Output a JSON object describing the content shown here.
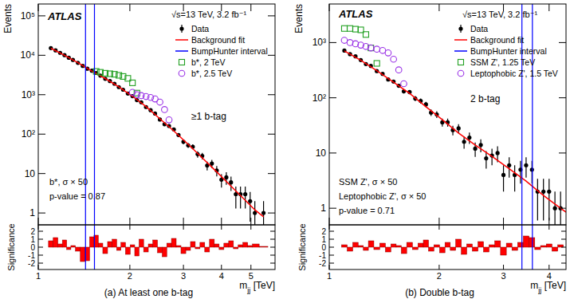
{
  "chart_data": [
    {
      "type": "scatter",
      "caption": "(a) At least one b-tag",
      "log": true,
      "xlim": [
        1.0,
        6.0
      ],
      "xticks": [
        1,
        2,
        3,
        4,
        5
      ],
      "ylim": [
        0.5,
        200000
      ],
      "yticks": [
        1,
        10,
        {
          "value": 100,
          "label": "10²"
        },
        {
          "value": 1000,
          "label": "10³"
        },
        {
          "value": 10000,
          "label": "10⁴"
        },
        {
          "value": 100000,
          "label": "10⁵"
        }
      ],
      "y_label": "Events",
      "x_label": [
        "m",
        "jj",
        " [TeV]"
      ],
      "annotations": {
        "experiment": "ATLAS",
        "energy": "√s=13 TeV, 3.2 fb⁻¹",
        "category": "≥1 b-tag",
        "notes": [
          "b*, σ × 50",
          "p-value = 0.87"
        ]
      },
      "series": [
        {
          "name": "Data",
          "type": "scatter",
          "marker": "circle",
          "color": "#000000",
          "x": [
            1.1,
            1.14,
            1.18,
            1.22,
            1.26,
            1.3,
            1.35,
            1.4,
            1.45,
            1.5,
            1.55,
            1.6,
            1.66,
            1.72,
            1.78,
            1.84,
            1.9,
            1.97,
            2.04,
            2.11,
            2.18,
            2.26,
            2.34,
            2.42,
            2.51,
            2.6,
            2.69,
            2.79,
            2.89,
            3.0,
            3.11,
            3.22,
            3.34,
            3.46,
            3.59,
            3.72,
            3.86,
            4.0,
            4.15,
            4.3,
            4.46,
            4.62,
            4.79,
            4.97,
            5.15,
            5.5
          ],
          "values": [
            15200,
            13340,
            11540,
            10090,
            8670,
            7620,
            6420,
            5370,
            4560,
            4060,
            3560,
            3050,
            2530,
            2220,
            1900,
            1560,
            1340,
            1070,
            921,
            729,
            642,
            487,
            406,
            332,
            234,
            178,
            161,
            132,
            95,
            64,
            52,
            48,
            31,
            28,
            16,
            18,
            12,
            7,
            8,
            6,
            3,
            3,
            3,
            2,
            1,
            1
          ],
          "errors": [
            123,
            116,
            107,
            100,
            93,
            87,
            80,
            73,
            68,
            64,
            60,
            55,
            50,
            47,
            44,
            39,
            37,
            33,
            30,
            27,
            25,
            22,
            20,
            18,
            15,
            13,
            13,
            11,
            9.7,
            8,
            7.2,
            6.9,
            5.6,
            5.3,
            4,
            4.2,
            3.5,
            2.6,
            2.8,
            2.4,
            1.7,
            1.7,
            1.7,
            1.4,
            1,
            1
          ]
        },
        {
          "name": "Background fit",
          "type": "line",
          "color": "#ff0000",
          "x": [
            1.1,
            1.22,
            1.35,
            1.5,
            1.66,
            1.84,
            2.04,
            2.26,
            2.51,
            2.79,
            3.11,
            3.46,
            3.86,
            4.3,
            4.79,
            5.15,
            5.5
          ],
          "values": [
            15100,
            10000,
            6460,
            3980,
            2570,
            1580,
            912,
            500,
            245,
            120,
            55,
            25,
            11,
            4.8,
            2.1,
            1.2,
            0.8
          ]
        },
        {
          "name": "BumpHunter interval",
          "type": "vline",
          "color": "#0000ff",
          "x": [
            1.43,
            1.53
          ]
        },
        {
          "name": "b*, 2 TeV",
          "type": "scatter",
          "marker": "open_square",
          "color": "#22a022",
          "x": [
            1.55,
            1.6,
            1.66,
            1.72,
            1.78,
            1.84,
            1.9,
            1.97,
            2.04,
            2.11
          ],
          "values": [
            3900,
            3700,
            3500,
            3400,
            3300,
            3100,
            2900,
            2600,
            2000,
            1100
          ]
        },
        {
          "name": "b*, 2.5 TeV",
          "type": "scatter",
          "marker": "open_circle",
          "color": "#9a32e6",
          "x": [
            2.04,
            2.11,
            2.18,
            2.26,
            2.34,
            2.42,
            2.51,
            2.6,
            2.69
          ],
          "values": [
            1150,
            1000,
            950,
            900,
            850,
            780,
            650,
            420,
            230
          ]
        }
      ],
      "significance": {
        "y_label": "Significance",
        "ylim": [
          -2.8,
          2.8
        ],
        "yticks": [
          -2,
          -1,
          0,
          1,
          2
        ],
        "color": "#ff0000",
        "values": [
          0.8,
          1.2,
          0.4,
          0.9,
          -0.3,
          0.2,
          -0.5,
          -1.8,
          -1.7,
          1.3,
          1.5,
          0.5,
          -0.8,
          0.7,
          1.0,
          -0.4,
          0.6,
          -0.9,
          0.3,
          -1.1,
          1.0,
          -0.6,
          0.4,
          0.9,
          -0.7,
          -1.2,
          0.5,
          1.1,
          0.2,
          -0.8,
          -0.4,
          0.7,
          -0.2,
          0.6,
          -0.6,
          1.0,
          0.4,
          -0.3,
          0.5,
          0.8,
          -0.2,
          0.3,
          0.6,
          0.2,
          0.4,
          0.1
        ]
      }
    },
    {
      "type": "scatter",
      "caption": "(b) Double b-tag",
      "log": true,
      "xlim": [
        1.0,
        4.45
      ],
      "xticks": [
        1,
        2,
        3,
        4
      ],
      "ylim": [
        0.5,
        5000
      ],
      "yticks": [
        1,
        10,
        {
          "value": 100,
          "label": "10²"
        },
        {
          "value": 1000,
          "label": "10³"
        }
      ],
      "y_label": "Events",
      "x_label": [
        "m",
        "jj",
        " [TeV]"
      ],
      "annotations": {
        "experiment": "ATLAS",
        "energy": "√s=13 TeV, 3.2 fb⁻¹",
        "category": "2 b-tag",
        "notes": [
          "SSM Z', σ × 50",
          "Leptophobic Z', σ × 50",
          "p-value = 0.71"
        ]
      },
      "series": [
        {
          "name": "Data",
          "type": "scatter",
          "marker": "circle",
          "color": "#000000",
          "x": [
            1.1,
            1.14,
            1.18,
            1.22,
            1.26,
            1.3,
            1.35,
            1.4,
            1.45,
            1.5,
            1.55,
            1.6,
            1.66,
            1.72,
            1.78,
            1.84,
            1.9,
            1.97,
            2.04,
            2.11,
            2.18,
            2.26,
            2.34,
            2.42,
            2.51,
            2.6,
            2.69,
            2.79,
            2.89,
            3.0,
            3.11,
            3.22,
            3.34,
            3.46,
            3.59,
            3.72,
            3.86,
            4.0,
            4.15,
            4.3
          ],
          "values": [
            716,
            618,
            564,
            483,
            409,
            378,
            304,
            271,
            215,
            197,
            165,
            131,
            127,
            97,
            88,
            76,
            54,
            50,
            36,
            36,
            26,
            28,
            16,
            19,
            12,
            14,
            8,
            9,
            10,
            4,
            6,
            4,
            5,
            6,
            5,
            2,
            2,
            2,
            1,
            1
          ],
          "errors": [
            27,
            25,
            24,
            22,
            20,
            19,
            17,
            16,
            15,
            14,
            13,
            11,
            11,
            10,
            9.4,
            8.7,
            7.3,
            7.1,
            6,
            6,
            5.1,
            5.3,
            4,
            4.4,
            3.5,
            3.7,
            2.8,
            3,
            3.2,
            2,
            2.4,
            2,
            2.2,
            2.4,
            2.2,
            1.4,
            1.4,
            1.4,
            1,
            1
          ]
        },
        {
          "name": "Background fit",
          "type": "line",
          "color": "#ff0000",
          "x": [
            1.1,
            1.22,
            1.35,
            1.5,
            1.66,
            1.84,
            2.04,
            2.26,
            2.51,
            2.79,
            3.11,
            3.46,
            3.86,
            4.3,
            4.45
          ],
          "values": [
            708,
            479,
            309,
            191,
            120,
            69,
            40,
            23,
            14,
            8.7,
            5.2,
            3.1,
            1.7,
            1.0,
            0.85
          ]
        },
        {
          "name": "BumpHunter interval",
          "type": "vline",
          "color": "#0000ff",
          "x": [
            3.37,
            3.6
          ]
        },
        {
          "name": "SSM Z', 1.25 TeV",
          "type": "scatter",
          "marker": "open_square",
          "color": "#22a022",
          "x": [
            1.1,
            1.14,
            1.18,
            1.22,
            1.26,
            1.3,
            1.35
          ],
          "values": [
            1800,
            1800,
            1750,
            1700,
            1400,
            800,
            420
          ]
        },
        {
          "name": "Leptophobic Z', 1.5 TeV",
          "type": "scatter",
          "marker": "open_circle",
          "color": "#9a32e6",
          "x": [
            1.1,
            1.14,
            1.18,
            1.22,
            1.26,
            1.3,
            1.35,
            1.4,
            1.45,
            1.5,
            1.55,
            1.6
          ],
          "values": [
            1100,
            1000,
            950,
            900,
            850,
            800,
            760,
            720,
            650,
            500,
            320,
            180
          ]
        }
      ],
      "significance": {
        "y_label": "Significance",
        "ylim": [
          -2.8,
          2.8
        ],
        "yticks": [
          -2,
          -1,
          0,
          1,
          2
        ],
        "color": "#ff0000",
        "values": [
          0.3,
          -0.5,
          0.6,
          0.2,
          -0.4,
          0.8,
          -0.3,
          0.5,
          -0.6,
          0.4,
          0.2,
          -0.8,
          0.6,
          -0.3,
          0.5,
          0.9,
          -0.5,
          0.3,
          -0.7,
          0.6,
          -0.4,
          1.0,
          -0.9,
          0.4,
          -0.5,
          0.7,
          -0.6,
          0.3,
          0.8,
          -1.0,
          0.5,
          -0.4,
          0.6,
          1.4,
          1.2,
          -0.3,
          0.2,
          0.4,
          -0.5,
          0.3
        ]
      }
    }
  ]
}
